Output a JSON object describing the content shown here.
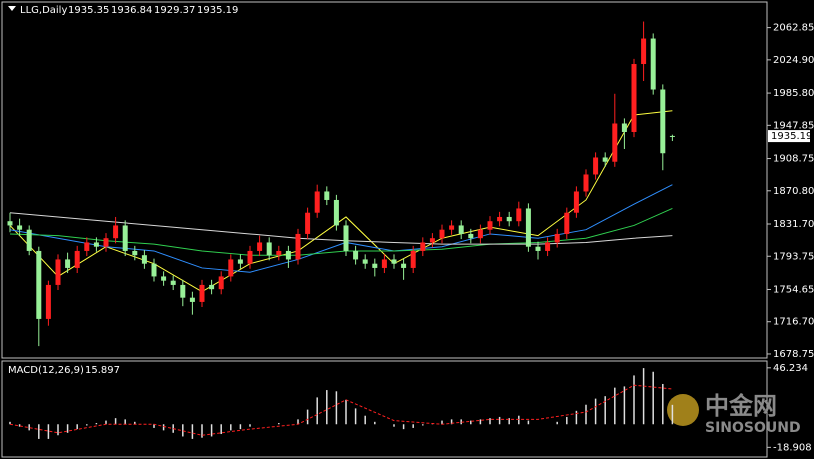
{
  "chart_data": {
    "type": "candlestick",
    "title": "LLG,Daily",
    "up_color": "#ff2020",
    "down_color": "#98f098",
    "ylim": [
      1674,
      2093
    ],
    "yticks": [
      2062.85,
      {
        "value": 2024.9,
        "label": "2024.90"
      },
      {
        "value": 1985.8,
        "label": "1985.80"
      },
      1947.85,
      1908.75,
      {
        "value": 1870.8,
        "label": "1870.80"
      },
      {
        "value": 1831.7,
        "label": "1831.70"
      },
      1793.75,
      1754.65,
      {
        "value": 1716.7,
        "label": "1716.70"
      },
      1678.75
    ],
    "candles": [
      [
        1835,
        1845,
        1822,
        1830
      ],
      [
        1830,
        1838,
        1818,
        1825
      ],
      [
        1825,
        1830,
        1795,
        1800
      ],
      [
        1800,
        1805,
        1688,
        1720
      ],
      [
        1720,
        1765,
        1712,
        1760
      ],
      [
        1760,
        1796,
        1754,
        1790
      ],
      [
        1790,
        1798,
        1774,
        1780
      ],
      [
        1780,
        1806,
        1774,
        1800
      ],
      [
        1800,
        1816,
        1794,
        1810
      ],
      [
        1810,
        1816,
        1799,
        1805
      ],
      [
        1805,
        1821,
        1799,
        1815
      ],
      [
        1815,
        1840,
        1809,
        1830
      ],
      [
        1830,
        1836,
        1794,
        1800
      ],
      [
        1800,
        1806,
        1789,
        1795
      ],
      [
        1795,
        1801,
        1779,
        1785
      ],
      [
        1785,
        1791,
        1764,
        1770
      ],
      [
        1770,
        1776,
        1759,
        1765
      ],
      [
        1765,
        1771,
        1754,
        1760
      ],
      [
        1760,
        1766,
        1735,
        1745
      ],
      [
        1745,
        1752,
        1725,
        1740
      ],
      [
        1740,
        1766,
        1734,
        1760
      ],
      [
        1760,
        1766,
        1749,
        1755
      ],
      [
        1755,
        1776,
        1749,
        1770
      ],
      [
        1770,
        1796,
        1764,
        1790
      ],
      [
        1790,
        1796,
        1779,
        1785
      ],
      [
        1785,
        1806,
        1779,
        1800
      ],
      [
        1800,
        1818,
        1794,
        1810
      ],
      [
        1810,
        1816,
        1789,
        1795
      ],
      [
        1795,
        1806,
        1789,
        1800
      ],
      [
        1800,
        1806,
        1780,
        1790
      ],
      [
        1790,
        1826,
        1784,
        1820
      ],
      [
        1820,
        1851,
        1814,
        1845
      ],
      [
        1845,
        1878,
        1839,
        1870
      ],
      [
        1870,
        1876,
        1854,
        1860
      ],
      [
        1860,
        1866,
        1824,
        1830
      ],
      [
        1830,
        1836,
        1794,
        1800
      ],
      [
        1800,
        1806,
        1784,
        1790
      ],
      [
        1790,
        1796,
        1779,
        1785
      ],
      [
        1785,
        1791,
        1770,
        1780
      ],
      [
        1780,
        1796,
        1774,
        1790
      ],
      [
        1790,
        1796,
        1779,
        1785
      ],
      [
        1785,
        1791,
        1766,
        1780
      ],
      [
        1780,
        1806,
        1774,
        1800
      ],
      [
        1800,
        1816,
        1794,
        1810
      ],
      [
        1810,
        1821,
        1804,
        1815
      ],
      [
        1815,
        1831,
        1809,
        1825
      ],
      [
        1825,
        1836,
        1819,
        1830
      ],
      [
        1830,
        1836,
        1814,
        1820
      ],
      [
        1820,
        1826,
        1809,
        1815
      ],
      [
        1815,
        1831,
        1809,
        1825
      ],
      [
        1825,
        1841,
        1819,
        1835
      ],
      [
        1835,
        1846,
        1829,
        1840
      ],
      [
        1840,
        1846,
        1829,
        1835
      ],
      [
        1835,
        1858,
        1829,
        1850
      ],
      [
        1850,
        1856,
        1799,
        1805
      ],
      [
        1805,
        1811,
        1790,
        1800
      ],
      [
        1800,
        1816,
        1794,
        1810
      ],
      [
        1810,
        1826,
        1804,
        1820
      ],
      [
        1820,
        1851,
        1814,
        1845
      ],
      [
        1845,
        1876,
        1839,
        1870
      ],
      [
        1870,
        1896,
        1864,
        1890
      ],
      [
        1890,
        1916,
        1884,
        1910
      ],
      [
        1910,
        1916,
        1899,
        1905
      ],
      [
        1905,
        1985,
        1899,
        1950
      ],
      [
        1950,
        1956,
        1920,
        1940
      ],
      [
        1940,
        2026,
        1934,
        2020
      ],
      [
        2020,
        2070,
        2000,
        2050
      ],
      [
        2050,
        2056,
        1984,
        1990
      ],
      [
        1990,
        1996,
        1895,
        1915
      ],
      [
        1935.35,
        1936.84,
        1929.37,
        1935.19
      ]
    ],
    "ma_x": [
      0,
      5,
      10,
      15,
      20,
      25,
      30,
      35,
      40,
      45,
      50,
      55,
      60,
      65,
      69
    ],
    "moving_averages": [
      {
        "color": "#ffff40",
        "values": [
          1830,
          1770,
          1805,
          1785,
          1752,
          1785,
          1800,
          1840,
          1785,
          1815,
          1828,
          1818,
          1860,
          1960,
          1965
        ]
      },
      {
        "color": "#2f8fff",
        "values": [
          1825,
          1815,
          1805,
          1800,
          1780,
          1775,
          1790,
          1810,
          1800,
          1805,
          1820,
          1815,
          1825,
          1855,
          1878
        ]
      },
      {
        "color": "#30d050",
        "values": [
          1820,
          1818,
          1812,
          1808,
          1800,
          1795,
          1795,
          1800,
          1800,
          1802,
          1808,
          1810,
          1815,
          1830,
          1850
        ]
      },
      {
        "color": "#d8d8d8",
        "values": [
          1845,
          1840,
          1835,
          1830,
          1825,
          1820,
          1815,
          1812,
          1810,
          1808,
          1808,
          1808,
          1810,
          1815,
          1818
        ]
      }
    ],
    "macd": {
      "label": "MACD(12,26,9)",
      "color": "#e0e0e0",
      "signal_color": "#ff2020",
      "ylim": [
        -26,
        51
      ],
      "yticks": [
        46.234,
        -18.908
      ],
      "values": [
        2,
        -2,
        -5,
        -12,
        -12,
        -9,
        -7,
        -4,
        -1,
        1,
        3,
        5,
        4,
        2,
        0,
        -3,
        -5,
        -7,
        -10,
        -12,
        -11,
        -10,
        -8,
        -5,
        -4,
        -2,
        0,
        0,
        1,
        0,
        4,
        12,
        22,
        28,
        27,
        20,
        13,
        7,
        2,
        0,
        -2,
        -4,
        -3,
        -1,
        1,
        3,
        4,
        4,
        3,
        4,
        5,
        6,
        5,
        7,
        3,
        0,
        0,
        2,
        6,
        11,
        16,
        21,
        23,
        30,
        31,
        40,
        46,
        43,
        33,
        15.897
      ],
      "signal_x": [
        0,
        5,
        10,
        15,
        20,
        25,
        30,
        35,
        40,
        45,
        50,
        55,
        60,
        65,
        69
      ],
      "signal": [
        0,
        -7,
        0,
        0,
        -9,
        -4,
        0,
        20,
        3,
        0,
        4,
        4,
        10,
        32,
        28.896
      ]
    },
    "watermark": [
      "中金网",
      "SINOSOUND"
    ]
  }
}
